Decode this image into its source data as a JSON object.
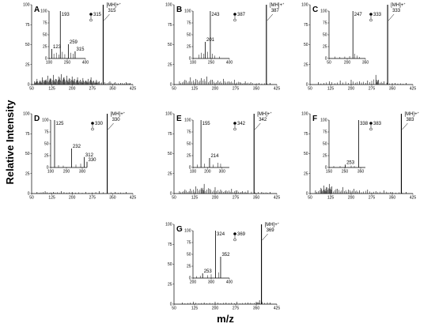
{
  "figure": {
    "ylabel": "Relative Intensity",
    "xlabel": "m/z"
  },
  "chart_data": [
    {
      "type": "line",
      "panel": "A",
      "x_ticks": [
        50,
        125,
        200,
        275,
        350,
        425
      ],
      "y_ticks": [
        0,
        25,
        50,
        75,
        100
      ],
      "xlim": [
        50,
        425
      ],
      "ylim": [
        0,
        100
      ],
      "peak": {
        "mz": 315,
        "label": "[M+H]+",
        "mz_label": "315",
        "rel": 100
      },
      "noise": [
        [
          60,
          4
        ],
        [
          70,
          7
        ],
        [
          80,
          5
        ],
        [
          90,
          9
        ],
        [
          100,
          6
        ],
        [
          110,
          11
        ],
        [
          120,
          8
        ],
        [
          130,
          12
        ],
        [
          140,
          7
        ],
        [
          150,
          10
        ],
        [
          160,
          13
        ],
        [
          170,
          9
        ],
        [
          180,
          11
        ],
        [
          190,
          8
        ],
        [
          200,
          10
        ],
        [
          210,
          7
        ],
        [
          220,
          9
        ],
        [
          230,
          6
        ],
        [
          240,
          8
        ],
        [
          250,
          5
        ],
        [
          260,
          7
        ],
        [
          270,
          9
        ],
        [
          280,
          5
        ],
        [
          290,
          6
        ],
        [
          300,
          4
        ],
        [
          320,
          3
        ],
        [
          340,
          4
        ],
        [
          360,
          3
        ],
        [
          380,
          2
        ],
        [
          400,
          3
        ],
        [
          415,
          2
        ]
      ],
      "inset": {
        "x_ticks": [
          100,
          250,
          400
        ],
        "y_ticks": [
          0,
          25,
          50,
          75,
          100
        ],
        "xlim": [
          100,
          400
        ],
        "ylim": [
          0,
          100
        ],
        "peaks": [
          {
            "mz": 193,
            "rel": 100,
            "label": "193"
          },
          {
            "mz": 123,
            "rel": 20,
            "label": "123"
          },
          {
            "mz": 259,
            "rel": 30,
            "label": "259"
          },
          {
            "mz": 315,
            "rel": 15,
            "label": "315"
          }
        ],
        "minor": [
          [
            140,
            10
          ],
          [
            160,
            12
          ],
          [
            180,
            8
          ],
          [
            210,
            14
          ],
          [
            230,
            9
          ],
          [
            280,
            12
          ],
          [
            300,
            10
          ]
        ],
        "precursor": "315"
      }
    },
    {
      "type": "line",
      "panel": "B",
      "x_ticks": [
        50,
        125,
        200,
        275,
        350,
        425
      ],
      "y_ticks": [
        0,
        25,
        50,
        75,
        100
      ],
      "xlim": [
        50,
        425
      ],
      "ylim": [
        0,
        100
      ],
      "peak": {
        "mz": 387,
        "label": "[M+H]+",
        "mz_label": "387",
        "rel": 100
      },
      "noise": [
        [
          70,
          4
        ],
        [
          90,
          6
        ],
        [
          110,
          9
        ],
        [
          130,
          7
        ],
        [
          150,
          8
        ],
        [
          170,
          10
        ],
        [
          190,
          6
        ],
        [
          210,
          5
        ],
        [
          230,
          7
        ],
        [
          250,
          4
        ],
        [
          270,
          6
        ],
        [
          290,
          3
        ],
        [
          310,
          4
        ],
        [
          330,
          3
        ],
        [
          360,
          2
        ],
        [
          400,
          2
        ]
      ],
      "inset": {
        "x_ticks": [
          100,
          250,
          400
        ],
        "y_ticks": [
          0,
          25,
          50,
          75,
          100
        ],
        "xlim": [
          100,
          400
        ],
        "ylim": [
          0,
          100
        ],
        "peaks": [
          {
            "mz": 243,
            "rel": 100,
            "label": "243"
          },
          {
            "mz": 201,
            "rel": 35,
            "label": "201"
          }
        ],
        "minor": [
          [
            150,
            8
          ],
          [
            170,
            12
          ],
          [
            190,
            10
          ],
          [
            220,
            14
          ],
          [
            260,
            10
          ],
          [
            280,
            6
          ],
          [
            320,
            4
          ]
        ],
        "precursor": "387"
      }
    },
    {
      "type": "line",
      "panel": "C",
      "x_ticks": [
        50,
        125,
        200,
        275,
        350,
        425
      ],
      "y_ticks": [
        0,
        25,
        50,
        75,
        100
      ],
      "xlim": [
        50,
        425
      ],
      "ylim": [
        0,
        100
      ],
      "peak": {
        "mz": 333,
        "label": "[M+H]+",
        "mz_label": "333",
        "rel": 100
      },
      "noise": [
        [
          80,
          3
        ],
        [
          120,
          4
        ],
        [
          160,
          5
        ],
        [
          200,
          6
        ],
        [
          230,
          4
        ],
        [
          260,
          5
        ],
        [
          290,
          12
        ],
        [
          300,
          6
        ],
        [
          320,
          4
        ],
        [
          360,
          2
        ],
        [
          400,
          2
        ]
      ],
      "inset": {
        "x_ticks": [
          50,
          200,
          350
        ],
        "y_ticks": [
          0,
          25,
          50,
          75,
          100
        ],
        "xlim": [
          50,
          350
        ],
        "ylim": [
          0,
          100
        ],
        "peaks": [
          {
            "mz": 247,
            "rel": 100,
            "label": "247"
          }
        ],
        "minor": [
          [
            100,
            4
          ],
          [
            140,
            3
          ],
          [
            180,
            4
          ],
          [
            220,
            5
          ],
          [
            260,
            10
          ],
          [
            280,
            6
          ],
          [
            300,
            3
          ]
        ],
        "precursor": "333"
      }
    },
    {
      "type": "line",
      "panel": "D",
      "x_ticks": [
        50,
        125,
        200,
        275,
        350,
        425
      ],
      "y_ticks": [
        0,
        25,
        50,
        75,
        100
      ],
      "xlim": [
        50,
        425
      ],
      "ylim": [
        0,
        100
      ],
      "peak": {
        "mz": 330,
        "label": "[M+H]+",
        "mz_label": "330",
        "rel": 100
      },
      "noise": [
        [
          70,
          2
        ],
        [
          100,
          3
        ],
        [
          130,
          2
        ],
        [
          160,
          3
        ],
        [
          200,
          2
        ],
        [
          250,
          2
        ],
        [
          300,
          3
        ],
        [
          360,
          2
        ],
        [
          400,
          2
        ]
      ],
      "inset": {
        "x_ticks": [
          100,
          200,
          300
        ],
        "y_ticks": [
          0,
          25,
          50,
          75,
          100
        ],
        "xlim": [
          100,
          330
        ],
        "ylim": [
          0,
          100
        ],
        "peaks": [
          {
            "mz": 125,
            "rel": 100,
            "label": "125"
          },
          {
            "mz": 232,
            "rel": 40,
            "label": "232"
          },
          {
            "mz": 312,
            "rel": 22,
            "label": "312"
          },
          {
            "mz": 330,
            "rel": 12,
            "label": "330"
          }
        ],
        "minor": [
          [
            150,
            5
          ],
          [
            180,
            4
          ],
          [
            260,
            6
          ],
          [
            290,
            8
          ]
        ],
        "precursor": "330"
      }
    },
    {
      "type": "line",
      "panel": "E",
      "x_ticks": [
        50,
        125,
        200,
        275,
        350,
        425
      ],
      "y_ticks": [
        0,
        25,
        50,
        75,
        100
      ],
      "xlim": [
        50,
        425
      ],
      "ylim": [
        0,
        100
      ],
      "peak": {
        "mz": 342,
        "label": "[M+H]+",
        "mz_label": "342",
        "rel": 100
      },
      "noise": [
        [
          70,
          3
        ],
        [
          90,
          5
        ],
        [
          110,
          6
        ],
        [
          130,
          9
        ],
        [
          150,
          7
        ],
        [
          160,
          12
        ],
        [
          180,
          6
        ],
        [
          200,
          8
        ],
        [
          220,
          5
        ],
        [
          240,
          4
        ],
        [
          260,
          6
        ],
        [
          280,
          4
        ],
        [
          300,
          3
        ],
        [
          320,
          4
        ],
        [
          370,
          2
        ],
        [
          400,
          2
        ]
      ],
      "inset": {
        "x_ticks": [
          100,
          200,
          300
        ],
        "y_ticks": [
          0,
          25,
          50,
          75,
          100
        ],
        "xlim": [
          100,
          350
        ],
        "ylim": [
          0,
          100
        ],
        "peaks": [
          {
            "mz": 155,
            "rel": 100,
            "label": "155"
          },
          {
            "mz": 214,
            "rel": 20,
            "label": "214"
          }
        ],
        "minor": [
          [
            130,
            6
          ],
          [
            180,
            8
          ],
          [
            240,
            6
          ],
          [
            270,
            10
          ],
          [
            290,
            8
          ]
        ],
        "precursor": "342"
      }
    },
    {
      "type": "line",
      "panel": "F",
      "x_ticks": [
        50,
        125,
        200,
        275,
        350,
        425
      ],
      "y_ticks": [
        0,
        25,
        50,
        75,
        100
      ],
      "xlim": [
        50,
        425
      ],
      "ylim": [
        0,
        100
      ],
      "peak": {
        "mz": 383,
        "label": "[M+H]+",
        "mz_label": "383",
        "rel": 100
      },
      "noise": [
        [
          70,
          4
        ],
        [
          90,
          7
        ],
        [
          100,
          10
        ],
        [
          110,
          8
        ],
        [
          120,
          12
        ],
        [
          130,
          9
        ],
        [
          150,
          6
        ],
        [
          170,
          8
        ],
        [
          190,
          5
        ],
        [
          210,
          6
        ],
        [
          230,
          4
        ],
        [
          260,
          5
        ],
        [
          290,
          3
        ],
        [
          320,
          4
        ],
        [
          350,
          2
        ],
        [
          400,
          2
        ]
      ],
      "inset": {
        "x_ticks": [
          150,
          250,
          350
        ],
        "y_ticks": [
          0,
          25,
          50,
          75,
          100
        ],
        "xlim": [
          150,
          380
        ],
        "ylim": [
          0,
          100
        ],
        "peaks": [
          {
            "mz": 338,
            "rel": 100,
            "label": "338"
          },
          {
            "mz": 253,
            "rel": 6,
            "label": "253"
          }
        ],
        "minor": [
          [
            180,
            3
          ],
          [
            220,
            3
          ],
          [
            290,
            4
          ],
          [
            310,
            3
          ]
        ],
        "precursor": "383"
      }
    },
    {
      "type": "line",
      "panel": "G",
      "x_ticks": [
        50,
        125,
        200,
        275,
        350,
        425
      ],
      "y_ticks": [
        0,
        25,
        50,
        75,
        100
      ],
      "xlim": [
        50,
        425
      ],
      "ylim": [
        0,
        100
      ],
      "peak": {
        "mz": 369,
        "label": "[M+H]+",
        "mz_label": "369",
        "rel": 100
      },
      "noise": [
        [
          80,
          2
        ],
        [
          120,
          3
        ],
        [
          160,
          2
        ],
        [
          200,
          3
        ],
        [
          240,
          2
        ],
        [
          280,
          3
        ],
        [
          320,
          2
        ],
        [
          350,
          3
        ],
        [
          362,
          5
        ],
        [
          400,
          2
        ]
      ],
      "inset": {
        "x_ticks": [
          200,
          300,
          400
        ],
        "y_ticks": [
          0,
          25,
          50,
          75,
          100
        ],
        "xlim": [
          200,
          400
        ],
        "ylim": [
          0,
          100
        ],
        "peaks": [
          {
            "mz": 324,
            "rel": 100,
            "label": "324"
          },
          {
            "mz": 352,
            "rel": 45,
            "label": "352"
          },
          {
            "mz": 253,
            "rel": 10,
            "label": "253"
          }
        ],
        "minor": [
          [
            220,
            4
          ],
          [
            240,
            5
          ],
          [
            280,
            6
          ],
          [
            300,
            8
          ],
          [
            340,
            12
          ]
        ],
        "precursor": "369"
      }
    }
  ]
}
